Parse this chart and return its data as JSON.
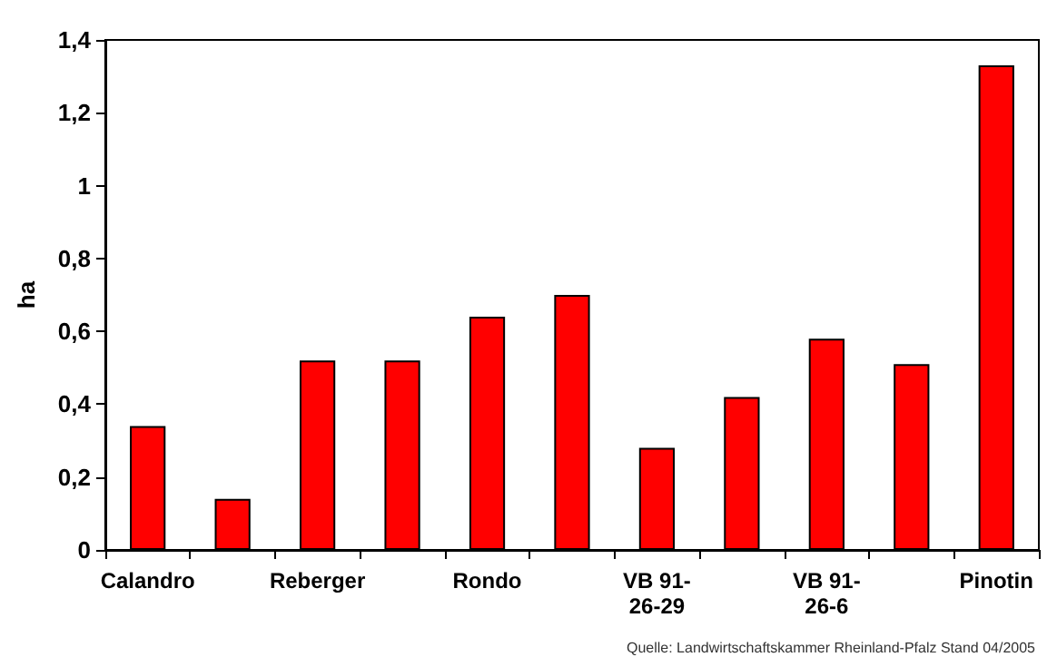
{
  "chart_data": {
    "type": "bar",
    "ylabel": "ha",
    "categories": [
      "Calandro",
      null,
      "Reberger",
      null,
      "Rondo",
      null,
      "VB 91-26-29",
      null,
      "VB 91-26-6",
      null,
      "Pinotin"
    ],
    "values": [
      0.34,
      0.14,
      0.52,
      0.52,
      0.64,
      0.7,
      0.28,
      0.42,
      0.58,
      0.51,
      1.33
    ],
    "color": "#ff0000",
    "ylim": [
      0,
      1.4
    ],
    "yticks": [
      0,
      {
        "value": 0.2,
        "label": "0,2"
      },
      {
        "value": 0.4,
        "label": "0,4"
      },
      {
        "value": 0.6,
        "label": "0,6"
      },
      {
        "value": 0.8,
        "label": "0,8"
      },
      1,
      {
        "value": 1.2,
        "label": "1,2"
      },
      {
        "value": 1.4,
        "label": "1,4"
      }
    ],
    "grid": false,
    "annotations": [
      "Quelle: Landwirtschaftskammer Rheinland-Pfalz Stand 04/2005"
    ]
  }
}
